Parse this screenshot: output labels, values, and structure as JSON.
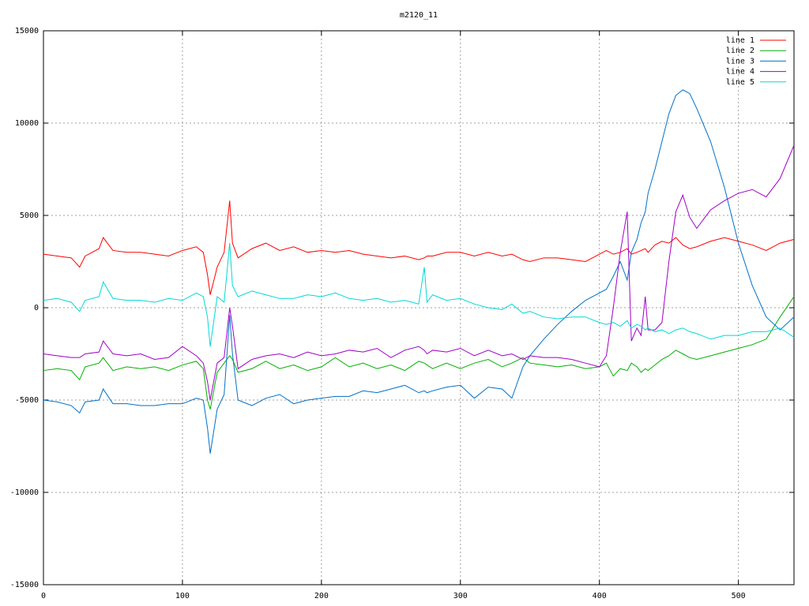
{
  "chart_data": {
    "type": "line",
    "title": "m2120_11",
    "x": [
      0,
      10,
      20,
      26,
      30,
      40,
      43,
      50,
      60,
      70,
      80,
      90,
      100,
      110,
      115,
      118,
      120,
      125,
      130,
      134,
      136,
      140,
      150,
      160,
      170,
      180,
      190,
      200,
      210,
      220,
      230,
      240,
      250,
      260,
      270,
      274,
      276,
      280,
      290,
      300,
      310,
      320,
      330,
      337,
      345,
      350,
      360,
      370,
      380,
      390,
      400,
      405,
      410,
      415,
      420,
      423,
      427,
      430,
      433,
      435,
      440,
      445,
      450,
      455,
      460,
      465,
      470,
      480,
      490,
      500,
      510,
      520,
      530,
      540
    ],
    "series": [
      {
        "name": "line 1",
        "color": "#ff0000",
        "values": [
          2900,
          2800,
          2700,
          2200,
          2800,
          3200,
          3800,
          3100,
          3000,
          3000,
          2900,
          2800,
          3100,
          3300,
          3000,
          1800,
          700,
          2200,
          3000,
          5800,
          3500,
          2700,
          3200,
          3500,
          3100,
          3300,
          3000,
          3100,
          3000,
          3100,
          2900,
          2800,
          2700,
          2800,
          2600,
          2700,
          2800,
          2800,
          3000,
          3000,
          2800,
          3000,
          2800,
          2900,
          2600,
          2500,
          2700,
          2700,
          2600,
          2500,
          2900,
          3100,
          2900,
          3000,
          3200,
          2900,
          3000,
          3100,
          3200,
          3000,
          3400,
          3600,
          3500,
          3800,
          3400,
          3200,
          3300,
          3600,
          3800,
          3600,
          3400,
          3100,
          3500,
          3700
        ]
      },
      {
        "name": "line 2",
        "color": "#00b000",
        "values": [
          -3400,
          -3300,
          -3400,
          -3900,
          -3200,
          -3000,
          -2700,
          -3400,
          -3200,
          -3300,
          -3200,
          -3400,
          -3100,
          -2900,
          -3300,
          -5000,
          -5500,
          -3500,
          -3000,
          -2600,
          -2800,
          -3500,
          -3300,
          -2900,
          -3300,
          -3100,
          -3400,
          -3200,
          -2700,
          -3200,
          -3000,
          -3300,
          -3100,
          -3400,
          -2900,
          -3000,
          -3100,
          -3300,
          -3000,
          -3300,
          -3000,
          -2800,
          -3200,
          -3000,
          -2700,
          -3000,
          -3100,
          -3200,
          -3100,
          -3300,
          -3200,
          -3000,
          -3700,
          -3300,
          -3400,
          -3000,
          -3200,
          -3500,
          -3300,
          -3400,
          -3100,
          -2800,
          -2600,
          -2300,
          -2500,
          -2700,
          -2800,
          -2600,
          -2400,
          -2200,
          -2000,
          -1700,
          -500,
          600
        ]
      },
      {
        "name": "line 3",
        "color": "#0070c8",
        "values": [
          -5000,
          -5100,
          -5300,
          -5700,
          -5100,
          -5000,
          -4400,
          -5200,
          -5200,
          -5300,
          -5300,
          -5200,
          -5200,
          -4900,
          -5000,
          -6500,
          -7900,
          -5500,
          -4700,
          -400,
          -2500,
          -5000,
          -5300,
          -4900,
          -4700,
          -5200,
          -5000,
          -4900,
          -4800,
          -4800,
          -4500,
          -4600,
          -4400,
          -4200,
          -4600,
          -4500,
          -4600,
          -4500,
          -4300,
          -4200,
          -4900,
          -4300,
          -4400,
          -4900,
          -3200,
          -2600,
          -1700,
          -900,
          -200,
          400,
          800,
          1000,
          1700,
          2500,
          1500,
          3000,
          3700,
          4600,
          5200,
          6200,
          7500,
          9000,
          10500,
          11500,
          11800,
          11600,
          10800,
          9000,
          6500,
          3500,
          1200,
          -500,
          -1200,
          -500
        ]
      },
      {
        "name": "line 4",
        "color": "#a000c8",
        "values": [
          -2500,
          -2600,
          -2700,
          -2700,
          -2500,
          -2400,
          -1800,
          -2500,
          -2600,
          -2500,
          -2800,
          -2700,
          -2100,
          -2600,
          -3000,
          -4000,
          -5000,
          -3000,
          -2700,
          0,
          -1000,
          -3300,
          -2800,
          -2600,
          -2500,
          -2700,
          -2400,
          -2600,
          -2500,
          -2300,
          -2400,
          -2200,
          -2700,
          -2300,
          -2100,
          -2300,
          -2500,
          -2300,
          -2400,
          -2200,
          -2600,
          -2300,
          -2600,
          -2500,
          -2800,
          -2600,
          -2700,
          -2700,
          -2800,
          -3000,
          -3200,
          -2600,
          0,
          3000,
          5200,
          -1800,
          -1100,
          -1500,
          600,
          -1200,
          -1200,
          -800,
          2500,
          5200,
          6100,
          4900,
          4300,
          5300,
          5800,
          6200,
          6400,
          6000,
          7000,
          8800
        ]
      },
      {
        "name": "line 5",
        "color": "#00d8d8",
        "values": [
          400,
          500,
          300,
          -200,
          400,
          600,
          1400,
          500,
          400,
          400,
          300,
          500,
          400,
          800,
          600,
          -500,
          -2100,
          600,
          300,
          3500,
          1200,
          600,
          900,
          700,
          500,
          500,
          700,
          600,
          800,
          500,
          400,
          500,
          300,
          400,
          200,
          2200,
          300,
          700,
          400,
          500,
          200,
          0,
          -100,
          200,
          -300,
          -200,
          -500,
          -600,
          -500,
          -500,
          -800,
          -900,
          -800,
          -1000,
          -700,
          -1100,
          -900,
          -1000,
          -1200,
          -1100,
          -1300,
          -1200,
          -1400,
          -1200,
          -1100,
          -1300,
          -1400,
          -1700,
          -1500,
          -1500,
          -1300,
          -1300,
          -1100,
          -1600
        ]
      }
    ],
    "xlim": [
      0,
      540
    ],
    "xticks": [
      0,
      100,
      200,
      300,
      400,
      500
    ],
    "ylim": [
      -15000,
      15000
    ],
    "yticks": [
      -15000,
      -10000,
      -5000,
      0,
      5000,
      10000,
      15000
    ],
    "grid": true,
    "legend": "top-right"
  }
}
